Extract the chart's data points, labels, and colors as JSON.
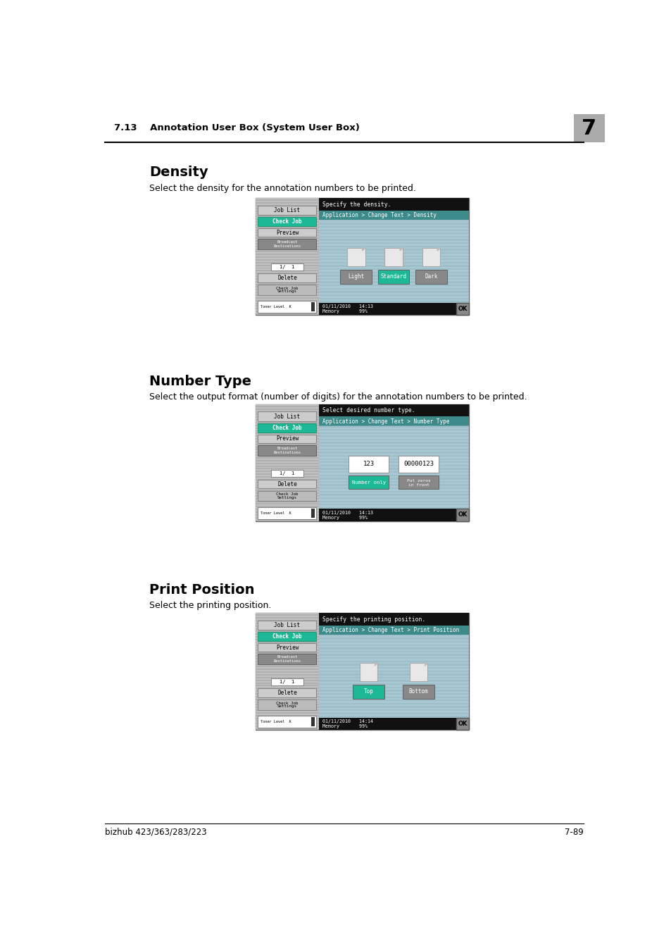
{
  "page_bg": "#ffffff",
  "header_text": "7.13    Annotation User Box (System User Box)",
  "header_num": "7",
  "footer_text_left": "bizhub 423/363/283/223",
  "footer_text_right": "7-89",
  "sections": [
    {
      "title": "Density",
      "description": "Select the density for the annotation numbers to be printed.",
      "screen": {
        "top_bar_text": "Specify the density.",
        "breadcrumb": "Application > Change Text > Density",
        "status_bar_line1": "01/11/2010   14:13",
        "status_bar_line2": "Memory       99%",
        "ok_button": "OK",
        "content_type": "icons_buttons",
        "content_buttons": [
          {
            "label": "Light",
            "active": false
          },
          {
            "label": "Standard",
            "active": true
          },
          {
            "label": "Dark",
            "active": false
          }
        ]
      }
    },
    {
      "title": "Number Type",
      "description": "Select the output format (number of digits) for the annotation numbers to be printed.",
      "screen": {
        "top_bar_text": "Select desired number type.",
        "breadcrumb": "Application > Change Text > Number Type",
        "status_bar_line1": "01/11/2010   14:13",
        "status_bar_line2": "Memory       99%",
        "ok_button": "OK",
        "content_type": "number_boxes",
        "content_buttons": [
          {
            "label": "Number only",
            "active": true,
            "top_text": "123"
          },
          {
            "label": "Put zeros\nin front",
            "active": false,
            "top_text": "00000123"
          }
        ]
      }
    },
    {
      "title": "Print Position",
      "description": "Select the printing position.",
      "screen": {
        "top_bar_text": "Specify the printing position.",
        "breadcrumb": "Application > Change Text > Print Position",
        "status_bar_line1": "01/11/2010   14:14",
        "status_bar_line2": "Memory       99%",
        "ok_button": "OK",
        "content_type": "icons_buttons",
        "content_buttons": [
          {
            "label": "Top",
            "active": true
          },
          {
            "label": "Bottom",
            "active": false
          }
        ]
      }
    }
  ],
  "colors": {
    "teal_header": "#3d8a8a",
    "teal_btn": "#1db896",
    "black_bar": "#111111",
    "content_bg": "#aac8d2",
    "content_stripe": "#90b8c4",
    "left_panel_bg": "#c0c0c0",
    "left_stripe": "#b0b0b0",
    "btn_gray": "#c8c8c8",
    "btn_gray_dark": "#aaaaaa",
    "header_num_bg": "#aaaaaa",
    "status_bg": "#111111"
  }
}
